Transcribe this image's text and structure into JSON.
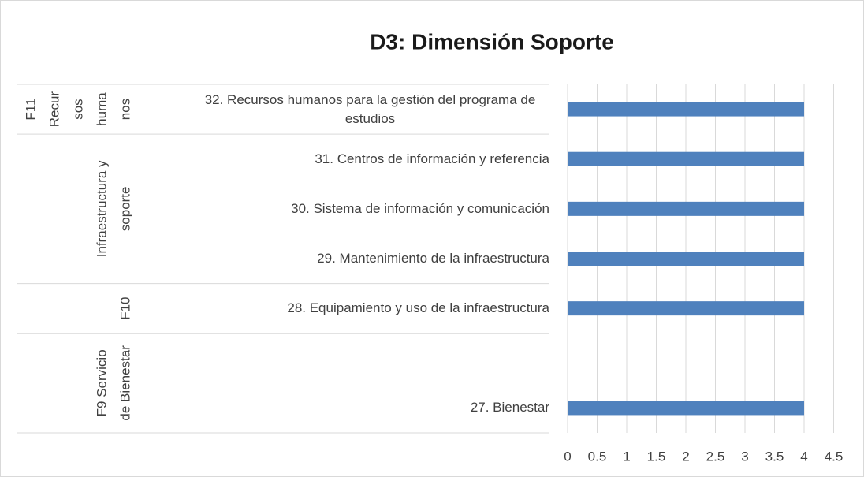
{
  "chart_data": {
    "type": "bar",
    "title": "D3: Dimensión Soporte",
    "color": "#4f81bd",
    "xlim": [
      0,
      4.5
    ],
    "xticks": [
      0,
      0.5,
      1,
      1.5,
      2,
      2.5,
      3,
      3.5,
      4,
      4.5
    ],
    "grid": true,
    "groups": [
      {
        "label_lines": [
          "F11",
          "Recur",
          "sos",
          "huma",
          "nos"
        ],
        "categories": [
          "32. Recursos humanos para la gestión del programa de estudios"
        ],
        "values": [
          4
        ]
      },
      {
        "label_lines": [
          "Infraestructura y",
          "soporte"
        ],
        "categories": [
          "31. Centros de información y referencia",
          "30. Sistema de información y comunicación",
          "29. Mantenimiento de la infraestructura"
        ],
        "values": [
          4,
          4,
          4
        ]
      },
      {
        "label_lines": [
          "F10"
        ],
        "categories": [
          "28. Equipamiento y uso de la infraestructura"
        ],
        "values": [
          4
        ]
      },
      {
        "label_lines": [
          "F9 Servicio",
          "de Bienestar"
        ],
        "categories": [
          null,
          "27. Bienestar"
        ],
        "values": [
          null,
          4
        ]
      }
    ]
  }
}
